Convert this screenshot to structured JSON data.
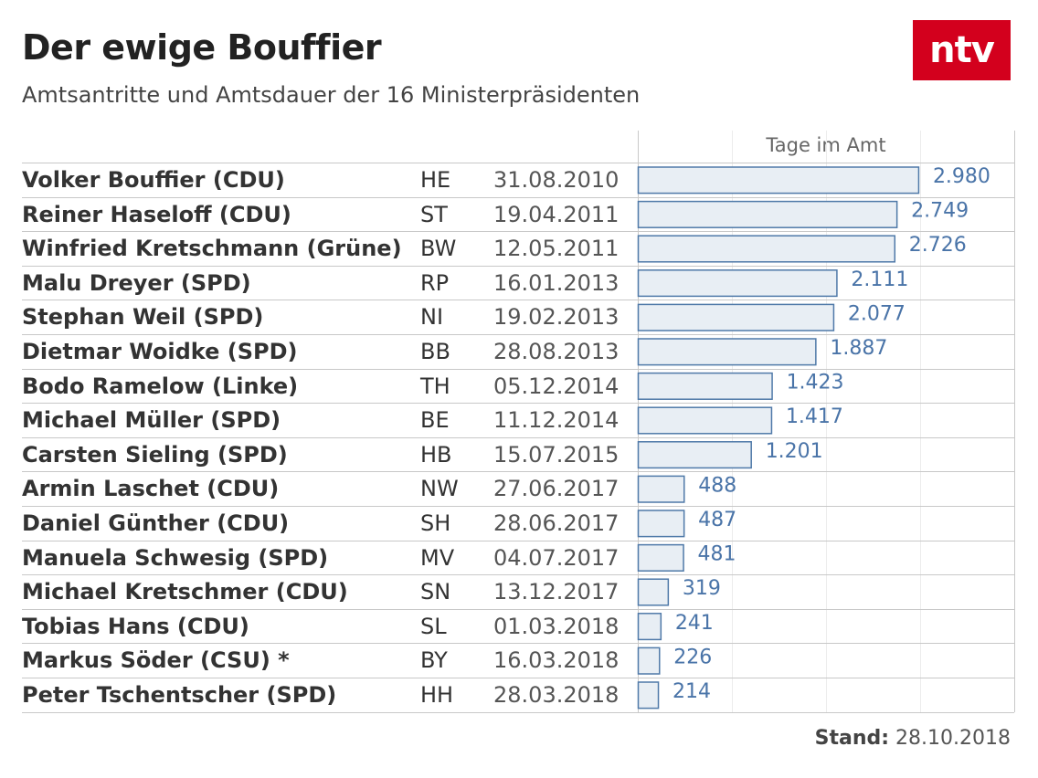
{
  "header": {
    "title": "Der ewige Bouffier",
    "subtitle": "Amtsantritte und Amtsdauer der 16 Ministerpräsidenten",
    "logo_text": "ntv",
    "logo_color": "#d3001d"
  },
  "column_header": "Tage im Amt",
  "footer": {
    "label": "Stand:",
    "date": "28.10.2018"
  },
  "colors": {
    "bar_fill": "#e8eef4",
    "bar_stroke": "#4f79a8",
    "value_text": "#4a74a8"
  },
  "chart_data": {
    "type": "bar",
    "orientation": "horizontal",
    "title": "Der ewige Bouffier",
    "subtitle": "Amtsantritte und Amtsdauer der 16 Ministerpräsidenten",
    "value_label": "Tage im Amt",
    "xlim": [
      0,
      4000
    ],
    "grid": true,
    "rows": [
      {
        "name": "Volker Bouffier (CDU)",
        "state": "HE",
        "date": "31.08.2010",
        "value": 2980,
        "label": "2.980"
      },
      {
        "name": "Reiner Haseloff (CDU)",
        "state": "ST",
        "date": "19.04.2011",
        "value": 2749,
        "label": "2.749"
      },
      {
        "name": "Winfried Kretschmann (Grüne)",
        "state": "BW",
        "date": "12.05.2011",
        "value": 2726,
        "label": "2.726"
      },
      {
        "name": "Malu Dreyer (SPD)",
        "state": "RP",
        "date": "16.01.2013",
        "value": 2111,
        "label": "2.111"
      },
      {
        "name": "Stephan Weil (SPD)",
        "state": "NI",
        "date": "19.02.2013",
        "value": 2077,
        "label": "2.077"
      },
      {
        "name": "Dietmar Woidke (SPD)",
        "state": "BB",
        "date": "28.08.2013",
        "value": 1887,
        "label": "1.887"
      },
      {
        "name": "Bodo Ramelow (Linke)",
        "state": "TH",
        "date": "05.12.2014",
        "value": 1423,
        "label": "1.423"
      },
      {
        "name": "Michael Müller (SPD)",
        "state": "BE",
        "date": "11.12.2014",
        "value": 1417,
        "label": "1.417"
      },
      {
        "name": "Carsten Sieling (SPD)",
        "state": "HB",
        "date": "15.07.2015",
        "value": 1201,
        "label": "1.201"
      },
      {
        "name": "Armin Laschet (CDU)",
        "state": "NW",
        "date": "27.06.2017",
        "value": 488,
        "label": "488"
      },
      {
        "name": "Daniel Günther (CDU)",
        "state": "SH",
        "date": "28.06.2017",
        "value": 487,
        "label": "487"
      },
      {
        "name": "Manuela Schwesig (SPD)",
        "state": "MV",
        "date": "04.07.2017",
        "value": 481,
        "label": "481"
      },
      {
        "name": "Michael Kretschmer (CDU)",
        "state": "SN",
        "date": "13.12.2017",
        "value": 319,
        "label": "319"
      },
      {
        "name": "Tobias Hans (CDU)",
        "state": "SL",
        "date": "01.03.2018",
        "value": 241,
        "label": "241"
      },
      {
        "name": "Markus Söder (CSU) *",
        "state": "BY",
        "date": "16.03.2018",
        "value": 226,
        "label": "226"
      },
      {
        "name": "Peter Tschentscher (SPD)",
        "state": "HH",
        "date": "28.03.2018",
        "value": 214,
        "label": "214"
      }
    ]
  }
}
